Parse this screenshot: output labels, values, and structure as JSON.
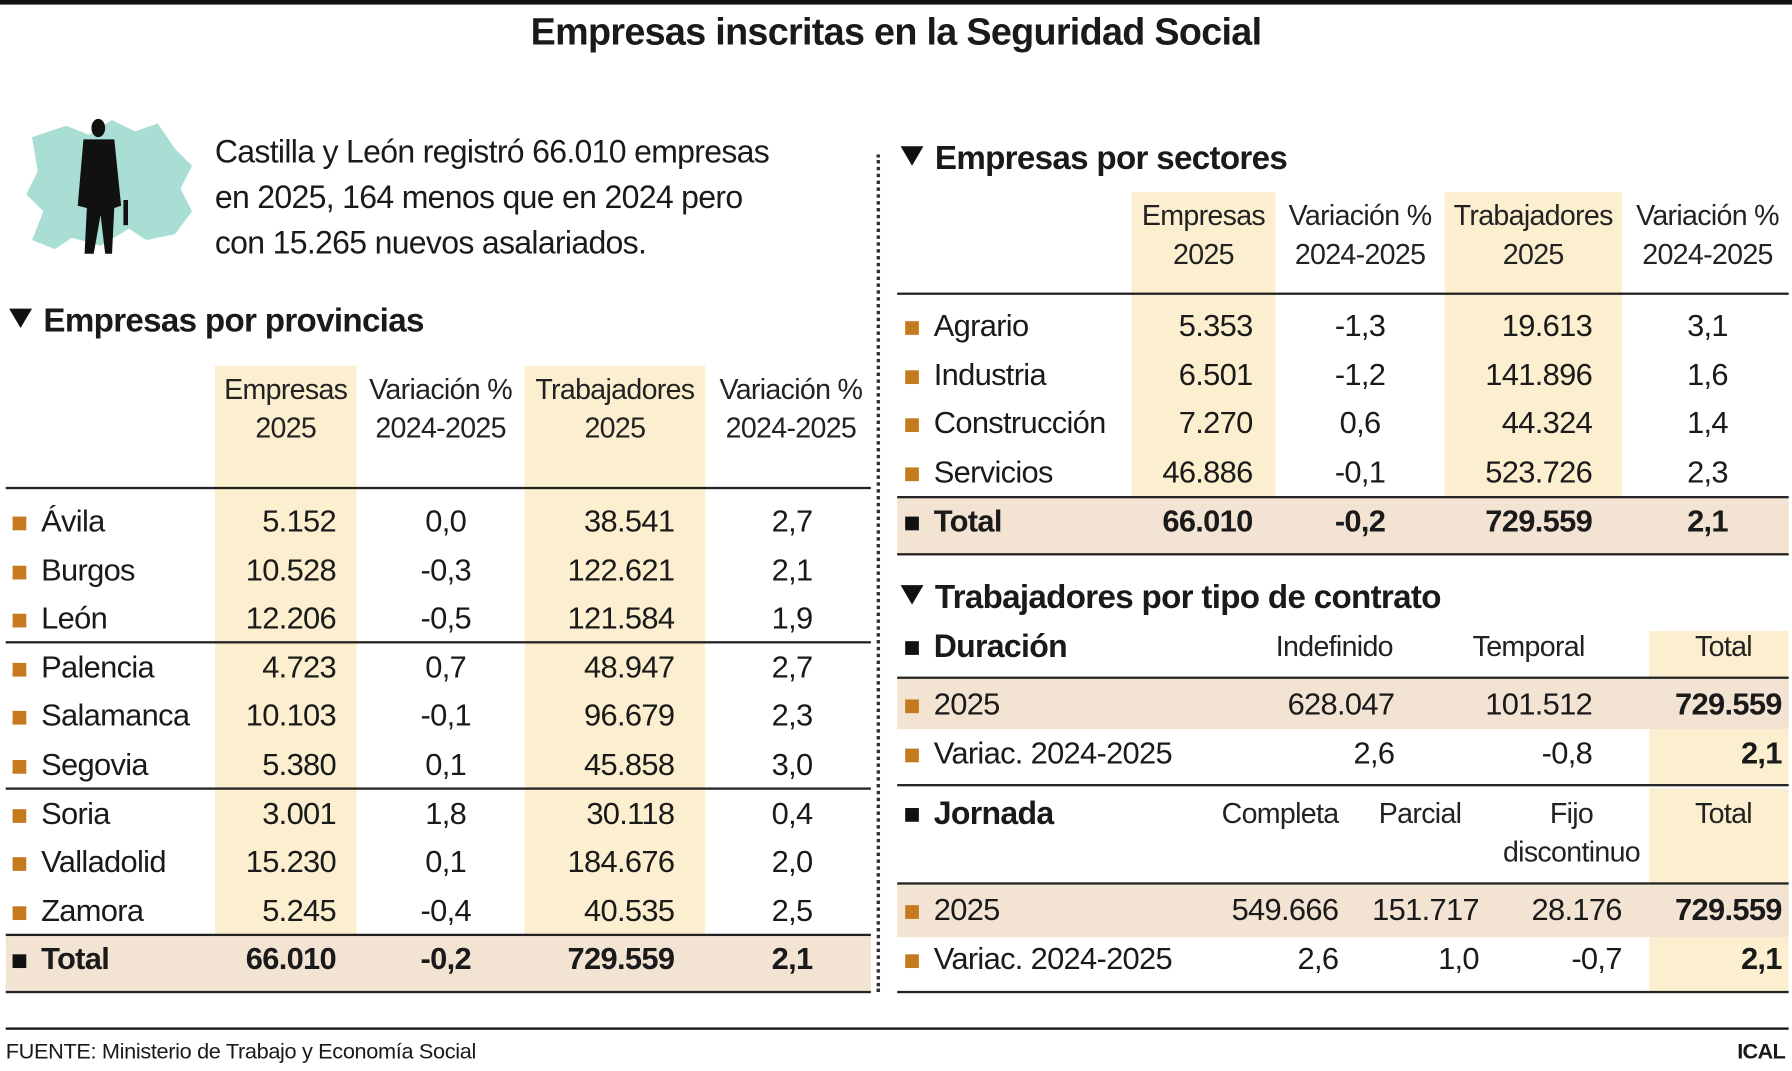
{
  "title": "Empresas inscritas en la Seguridad Social",
  "intro": [
    "Castilla y León registró 66.010 empresas",
    "en 2025, 164 menos que en 2024 pero",
    "con 15.265 nuevos asalariados."
  ],
  "colors": {
    "highlight": "#fcefcf",
    "total_row": "#f2e3d3",
    "bullet": "#c57a1f",
    "map": "#a8ded3"
  },
  "provincias": {
    "heading": "Empresas por provincias",
    "headers": [
      [
        "Empresas",
        "2025"
      ],
      [
        "Variación %",
        "2024-2025"
      ],
      [
        "Trabajadores",
        "2025"
      ],
      [
        "Variación %",
        "2024-2025"
      ]
    ],
    "rows": [
      [
        "Ávila",
        "5.152",
        "0,0",
        "38.541",
        "2,7"
      ],
      [
        "Burgos",
        "10.528",
        "-0,3",
        "122.621",
        "2,1"
      ],
      [
        "León",
        "12.206",
        "-0,5",
        "121.584",
        "1,9"
      ],
      [
        "Palencia",
        "4.723",
        "0,7",
        "48.947",
        "2,7"
      ],
      [
        "Salamanca",
        "10.103",
        "-0,1",
        "96.679",
        "2,3"
      ],
      [
        "Segovia",
        "5.380",
        "0,1",
        "45.858",
        "3,0"
      ],
      [
        "Soria",
        "3.001",
        "1,8",
        "30.118",
        "0,4"
      ],
      [
        "Valladolid",
        "15.230",
        "0,1",
        "184.676",
        "2,0"
      ],
      [
        "Zamora",
        "5.245",
        "-0,4",
        "40.535",
        "2,5"
      ]
    ],
    "total": [
      "Total",
      "66.010",
      "-0,2",
      "729.559",
      "2,1"
    ]
  },
  "sectores": {
    "heading": "Empresas por sectores",
    "headers": [
      [
        "Empresas",
        "2025"
      ],
      [
        "Variación %",
        "2024-2025"
      ],
      [
        "Trabajadores",
        "2025"
      ],
      [
        "Variación %",
        "2024-2025"
      ]
    ],
    "rows": [
      [
        "Agrario",
        "5.353",
        "-1,3",
        "19.613",
        "3,1"
      ],
      [
        "Industria",
        "6.501",
        "-1,2",
        "141.896",
        "1,6"
      ],
      [
        "Construcción",
        "7.270",
        "0,6",
        "44.324",
        "1,4"
      ],
      [
        "Servicios",
        "46.886",
        "-0,1",
        "523.726",
        "2,3"
      ]
    ],
    "total": [
      "Total",
      "66.010",
      "-0,2",
      "729.559",
      "2,1"
    ]
  },
  "contrato": {
    "heading": "Trabajadores por tipo de contrato",
    "duracion": {
      "label": "Duración",
      "headers": [
        "Indefinido",
        "Temporal",
        "Total"
      ],
      "rows": [
        [
          "2025",
          "628.047",
          "101.512",
          "729.559"
        ],
        [
          "Variac. 2024-2025",
          "2,6",
          "-0,8",
          "2,1"
        ]
      ]
    },
    "jornada": {
      "label": "Jornada",
      "headers": [
        "Completa",
        "Parcial",
        "Fijo",
        "discontinuo",
        "Total"
      ],
      "rows": [
        [
          "2025",
          "549.666",
          "151.717",
          "28.176",
          "729.559"
        ],
        [
          "Variac. 2024-2025",
          "2,6",
          "1,0",
          "-0,7",
          "2,1"
        ]
      ]
    }
  },
  "footer": {
    "source": "FUENTE: Ministerio de Trabajo y Economía Social",
    "brand": "ICAL"
  }
}
